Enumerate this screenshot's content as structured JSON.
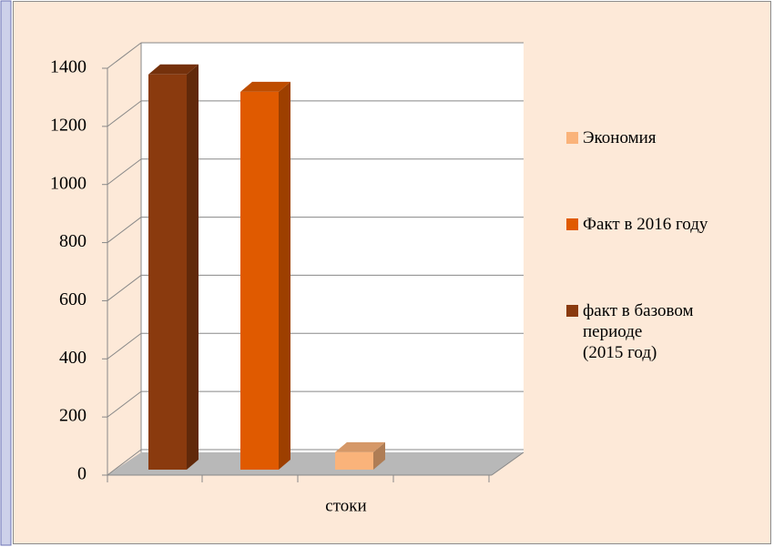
{
  "chart_data": {
    "type": "bar3d",
    "categories": [
      "стоки"
    ],
    "series": [
      {
        "name": "факт в базовом\nпериоде\n(2015 год)",
        "color": "#8a3a0e",
        "values": [
          1360
        ]
      },
      {
        "name": "Факт в 2016 году",
        "color": "#e05a00",
        "values": [
          1300
        ]
      },
      {
        "name": "Экономия",
        "color": "#fab37a",
        "values": [
          60
        ]
      }
    ],
    "ylim": [
      0,
      1400
    ],
    "yticks": [
      0,
      200,
      400,
      600,
      800,
      1000,
      1200,
      1400
    ],
    "grid": true,
    "legend": "right"
  }
}
